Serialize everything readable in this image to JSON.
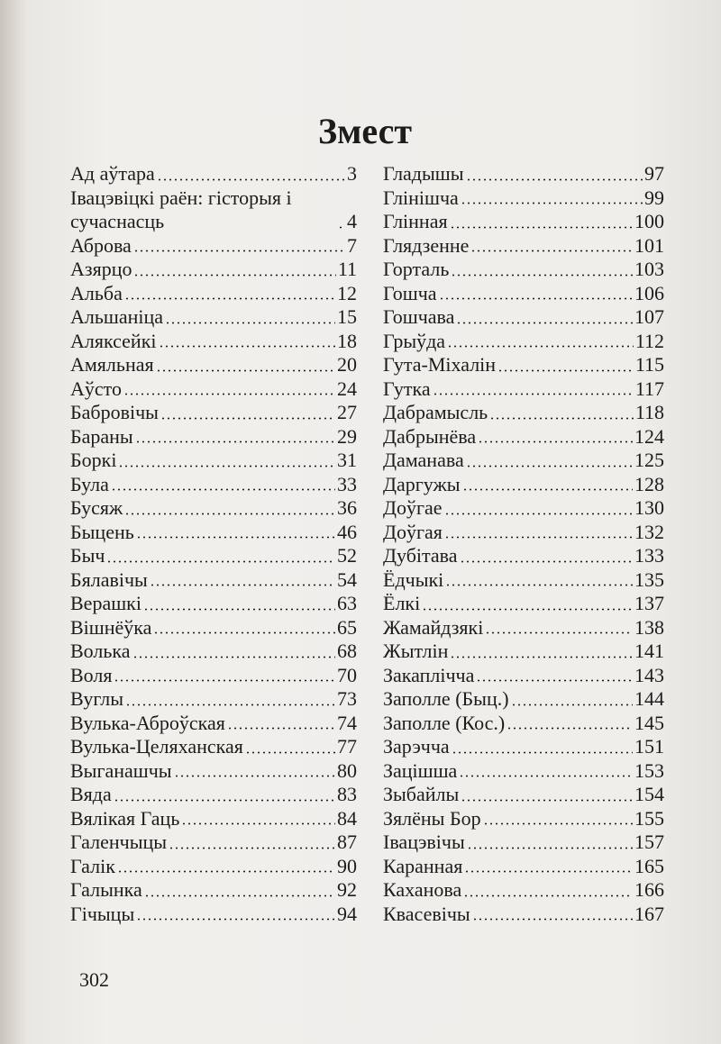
{
  "header": {
    "title": "Змест"
  },
  "columns": [
    {
      "entries": [
        {
          "title": "Ад аўтара",
          "page": 3
        },
        {
          "title": "Івацэвіцкі раён: гісторыя і сучаснасць",
          "page": 4
        },
        {
          "title": "Аброва",
          "page": 7
        },
        {
          "title": "Азярцо",
          "page": 11
        },
        {
          "title": "Альба",
          "page": 12
        },
        {
          "title": "Альшаніца",
          "page": 15
        },
        {
          "title": "Аляксейкі",
          "page": 18
        },
        {
          "title": "Амяльная",
          "page": 20
        },
        {
          "title": "Аўсто",
          "page": 24
        },
        {
          "title": "Бабровічы",
          "page": 27
        },
        {
          "title": "Бараны",
          "page": 29
        },
        {
          "title": "Боркі",
          "page": 31
        },
        {
          "title": "Була",
          "page": 33
        },
        {
          "title": "Бусяж",
          "page": 36
        },
        {
          "title": "Быцень",
          "page": 46
        },
        {
          "title": "Быч",
          "page": 52
        },
        {
          "title": "Бялавічы",
          "page": 54
        },
        {
          "title": "Верашкі",
          "page": 63
        },
        {
          "title": "Вішнёўка",
          "page": 65
        },
        {
          "title": "Волька",
          "page": 68
        },
        {
          "title": "Воля",
          "page": 70
        },
        {
          "title": "Вуглы",
          "page": 73
        },
        {
          "title": "Вулька-Аброўская",
          "page": 74
        },
        {
          "title": "Вулька-Целяханская",
          "page": 77
        },
        {
          "title": "Выганашчы",
          "page": 80
        },
        {
          "title": "Вяда",
          "page": 83
        },
        {
          "title": "Вялікая Гаць",
          "page": 84
        },
        {
          "title": "Галенчыцы",
          "page": 87
        },
        {
          "title": "Галік",
          "page": 90
        },
        {
          "title": "Галынка",
          "page": 92
        },
        {
          "title": "Гічыцы",
          "page": 94
        }
      ]
    },
    {
      "entries": [
        {
          "title": "Гладышы",
          "page": 97
        },
        {
          "title": "Глінішча",
          "page": 99
        },
        {
          "title": "Глінная",
          "page": 100
        },
        {
          "title": "Глядзенне",
          "page": 101
        },
        {
          "title": "Горталь",
          "page": 103
        },
        {
          "title": "Гошча",
          "page": 106
        },
        {
          "title": "Гошчава",
          "page": 107
        },
        {
          "title": "Грыўда",
          "page": 112
        },
        {
          "title": "Гута-Міхалін",
          "page": 115
        },
        {
          "title": "Гутка",
          "page": 117
        },
        {
          "title": "Дабрамысль",
          "page": 118
        },
        {
          "title": "Дабрынёва",
          "page": 124
        },
        {
          "title": "Даманава",
          "page": 125
        },
        {
          "title": "Даргужы",
          "page": 128
        },
        {
          "title": "Доўгае",
          "page": 130
        },
        {
          "title": "Доўгая",
          "page": 132
        },
        {
          "title": "Дубітава",
          "page": 133
        },
        {
          "title": "Ёдчыкі",
          "page": 135
        },
        {
          "title": "Ёлкі",
          "page": 137
        },
        {
          "title": "Жамайдзякі",
          "page": 138
        },
        {
          "title": "Жытлін",
          "page": 141
        },
        {
          "title": "Закаплічча",
          "page": 143
        },
        {
          "title": "Заполле (Быц.)",
          "page": 144
        },
        {
          "title": "Заполле (Кос.)",
          "page": 145
        },
        {
          "title": "Зарэчча",
          "page": 151
        },
        {
          "title": "Зацішша",
          "page": 153
        },
        {
          "title": "Зыбайлы",
          "page": 154
        },
        {
          "title": "Зялёны Бор",
          "page": 155
        },
        {
          "title": "Івацэвічы",
          "page": 157
        },
        {
          "title": "Каранная",
          "page": 165
        },
        {
          "title": "Каханова",
          "page": 166
        },
        {
          "title": "Квасевічы",
          "page": 167
        }
      ]
    }
  ],
  "footer": {
    "page_number": 302
  }
}
